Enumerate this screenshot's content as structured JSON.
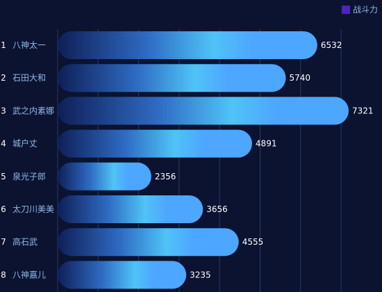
{
  "legend": {
    "label": "战斗力",
    "color": "#4b26b8"
  },
  "chart_data": {
    "type": "bar",
    "orientation": "horizontal",
    "categories": [
      "八神太一",
      "石田大和",
      "武之内素娜",
      "城户丈",
      "泉光子郎",
      "太刀川美美",
      "高石武",
      "八神嘉儿"
    ],
    "ranks": [
      "1",
      "2",
      "3",
      "4",
      "5",
      "6",
      "7",
      "8"
    ],
    "series": [
      {
        "name": "战斗力",
        "values": [
          6532,
          5740,
          7321,
          4891,
          2356,
          3656,
          4555,
          3235
        ]
      }
    ],
    "xlim": [
      0,
      7321
    ],
    "grid": true,
    "legend_position": "top-right",
    "colors": {
      "bar_dark": "#0f1f57",
      "bar_mid": "#2f6cc4",
      "bar_light": "#4fc3f7",
      "bar_end": "#4da6ff",
      "rank_text": "#ffffff",
      "name_text": "#8fb8e8",
      "value_text": "#ffffff",
      "grid": "#2a3a66"
    }
  }
}
